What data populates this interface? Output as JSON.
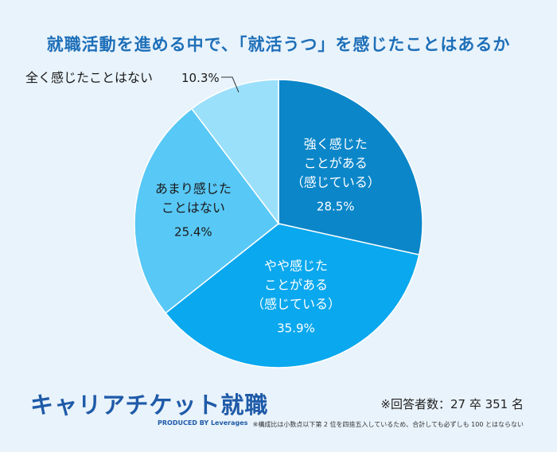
{
  "title": "就職活動を進める中で、「就活うつ」を感じたことはあるか",
  "chart_data": {
    "type": "pie",
    "start_angle_deg": 0,
    "slices": [
      {
        "label_lines": [
          "強く感じた",
          "ことがある",
          "（感じている）"
        ],
        "value": 28.5,
        "value_label": "28.5%",
        "color": "#0b86c9"
      },
      {
        "label_lines": [
          "やや感じた",
          "ことがある",
          "（感じている）"
        ],
        "value": 35.9,
        "value_label": "35.9%",
        "color": "#0aa8ee"
      },
      {
        "label_lines": [
          "あまり感じた",
          "ことはない"
        ],
        "value": 25.4,
        "value_label": "25.4%",
        "color": "#58c8f6"
      },
      {
        "label_lines": [],
        "value": 10.3,
        "value_label": "",
        "color": "#9be0fb"
      }
    ],
    "outside_label": {
      "label": "全く感じたことはない",
      "value_label": "10.3%"
    }
  },
  "branding": {
    "name": "キャリアチケット就職",
    "sub": "PRODUCED BY Leverages"
  },
  "respondents": "※回答者数：27 卒 351 名",
  "footnote": "※構成比は小数点以下第 2 位を四捨五入しているため、合計しても必ずしも 100 とはならない"
}
